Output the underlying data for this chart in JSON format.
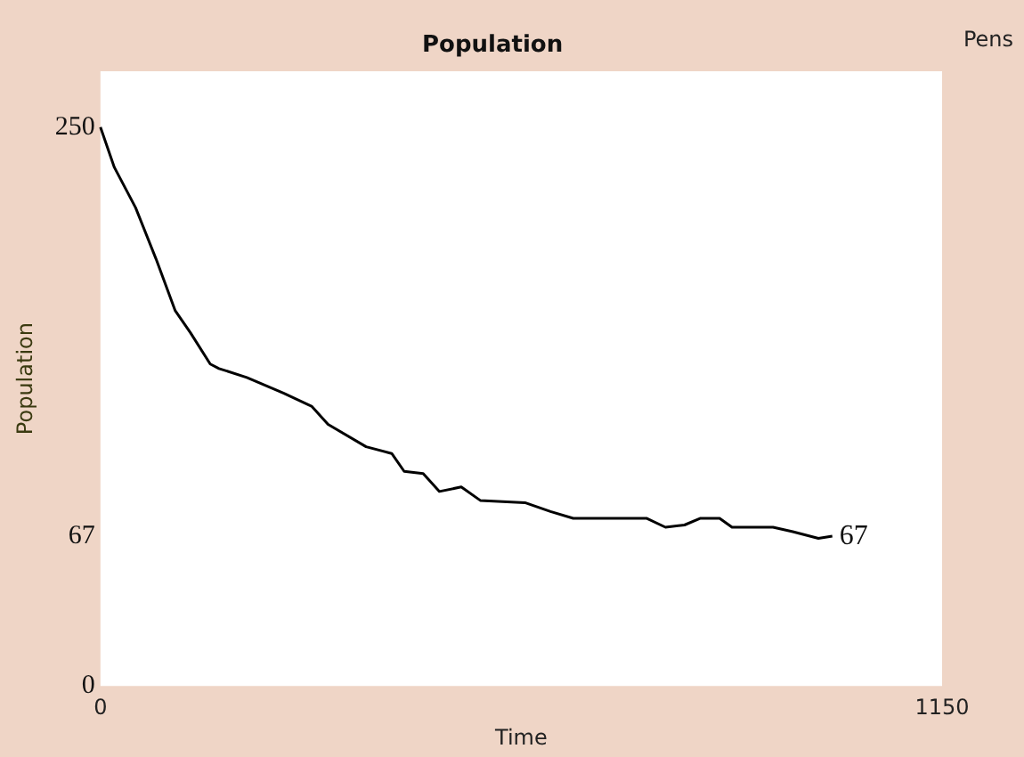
{
  "chart_data": {
    "type": "line",
    "title": "Population",
    "xlabel": "Time",
    "ylabel": "Population",
    "annotations": [
      "Pens",
      {
        "text": "67",
        "x": 1000,
        "y": 67
      }
    ],
    "x": [
      0,
      19,
      48,
      76,
      102,
      123,
      150,
      162,
      200,
      250,
      289,
      311,
      363,
      398,
      415,
      441,
      463,
      493,
      519,
      580,
      615,
      646,
      746,
      772,
      798,
      820,
      846,
      863,
      919,
      946,
      981,
      1000
    ],
    "series": [
      {
        "color": "#000000",
        "values": [
          250,
          232,
          214,
          191,
          168,
          158,
          144,
          142,
          138,
          131,
          125,
          117,
          107,
          104,
          96,
          95,
          87,
          89,
          83,
          82,
          78,
          75,
          75,
          71,
          72,
          75,
          75,
          71,
          71,
          69,
          66,
          67
        ]
      }
    ],
    "xlim": [
      0,
      1150
    ],
    "xticks": [
      0,
      1150
    ],
    "ylim": [
      0,
      275
    ],
    "yticks": [
      0,
      67,
      250
    ],
    "grid": false,
    "marker": "none",
    "line_style": "solid"
  }
}
